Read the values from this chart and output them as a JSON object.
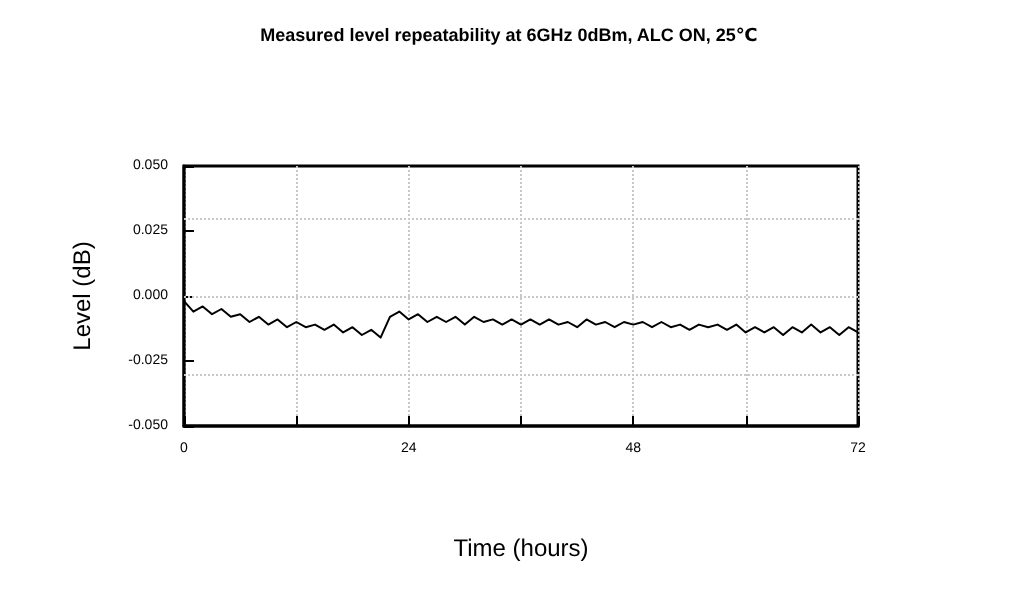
{
  "chart_data": {
    "type": "line",
    "title": "Measured level repeatability at 6GHz 0dBm, ALC ON, 25℃",
    "xlabel": "Time (hours)",
    "ylabel": "Level (dB)",
    "x": [
      0,
      1,
      2,
      3,
      4,
      5,
      6,
      7,
      8,
      9,
      10,
      11,
      12,
      13,
      14,
      15,
      16,
      17,
      18,
      19,
      20,
      21,
      22,
      23,
      24,
      25,
      26,
      27,
      28,
      29,
      30,
      31,
      32,
      33,
      34,
      35,
      36,
      37,
      38,
      39,
      40,
      41,
      42,
      43,
      44,
      45,
      46,
      47,
      48,
      49,
      50,
      51,
      52,
      53,
      54,
      55,
      56,
      57,
      58,
      59,
      60,
      61,
      62,
      63,
      64,
      65,
      66,
      67,
      68,
      69,
      70,
      71,
      72
    ],
    "series": [
      {
        "color": "#000000",
        "values": [
          -0.002,
          -0.006,
          -0.004,
          -0.007,
          -0.005,
          -0.008,
          -0.007,
          -0.01,
          -0.008,
          -0.011,
          -0.009,
          -0.012,
          -0.01,
          -0.012,
          -0.011,
          -0.013,
          -0.011,
          -0.014,
          -0.012,
          -0.015,
          -0.013,
          -0.016,
          -0.008,
          -0.006,
          -0.009,
          -0.007,
          -0.01,
          -0.008,
          -0.01,
          -0.008,
          -0.011,
          -0.008,
          -0.01,
          -0.009,
          -0.011,
          -0.009,
          -0.011,
          -0.009,
          -0.011,
          -0.009,
          -0.011,
          -0.01,
          -0.012,
          -0.009,
          -0.011,
          -0.01,
          -0.012,
          -0.01,
          -0.011,
          -0.01,
          -0.012,
          -0.01,
          -0.012,
          -0.011,
          -0.013,
          -0.011,
          -0.012,
          -0.011,
          -0.013,
          -0.011,
          -0.014,
          -0.012,
          -0.014,
          -0.012,
          -0.015,
          -0.012,
          -0.014,
          -0.011,
          -0.014,
          -0.012,
          -0.015,
          -0.012,
          -0.014
        ]
      }
    ],
    "xlim": [
      0,
      72
    ],
    "xticks": [
      0,
      {
        "value": 12,
        "label": null
      },
      24,
      {
        "value": 36,
        "label": null
      },
      48,
      {
        "value": 60,
        "label": null
      },
      72
    ],
    "ylim": [
      -0.05,
      0.05
    ],
    "yticks": [
      {
        "value": -0.05,
        "label": "-0.050"
      },
      {
        "value": -0.025,
        "label": "-0.025"
      },
      {
        "value": 0,
        "label": "0.000"
      },
      {
        "value": 0.025,
        "label": "0.025"
      },
      {
        "value": 0.05,
        "label": "0.050"
      }
    ],
    "grid": true,
    "marker": "none",
    "line_style": "solid"
  }
}
